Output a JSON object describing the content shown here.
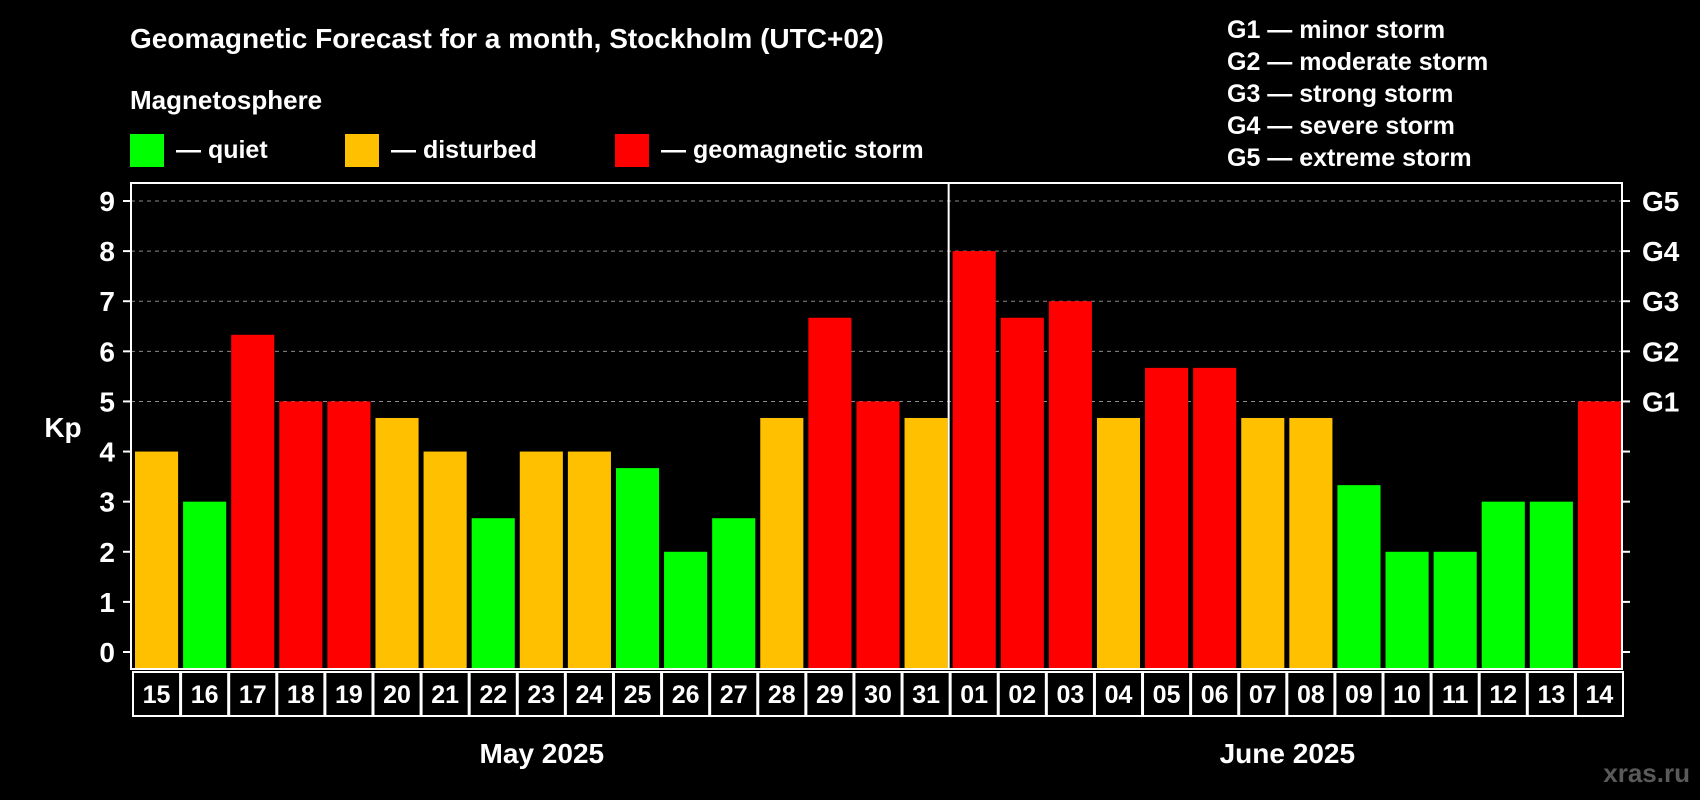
{
  "chart_data": {
    "type": "bar",
    "title": "Geomagnetic Forecast for a month, Stockholm (UTC+02)",
    "ylabel": "Kp",
    "ylim": [
      0,
      9
    ],
    "yticks": [
      "0",
      "1",
      "2",
      "3",
      "4",
      "5",
      "6",
      "7",
      "8",
      "9"
    ],
    "right_axis_labels": [
      {
        "label": "G1",
        "value": 5
      },
      {
        "label": "G2",
        "value": 6
      },
      {
        "label": "G3",
        "value": 7
      },
      {
        "label": "G4",
        "value": 8
      },
      {
        "label": "G5",
        "value": 9
      }
    ],
    "grid_values": [
      5,
      6,
      7,
      8,
      9
    ],
    "legend": {
      "heading": "Magnetosphere",
      "items": [
        {
          "label": "— quiet",
          "color": "#00ff00"
        },
        {
          "label": "— disturbed",
          "color": "#ffc000"
        },
        {
          "label": "— geomagnetic storm",
          "color": "#ff0000"
        }
      ]
    },
    "storm_scale": [
      "G1 — minor storm",
      "G2 — moderate storm",
      "G3 — strong storm",
      "G4 — severe storm",
      "G5 — extreme storm"
    ],
    "colors": {
      "quiet": "#00ff00",
      "disturbed": "#ffc000",
      "storm": "#ff0000"
    },
    "months": [
      {
        "label": "May 2025",
        "days": 17
      },
      {
        "label": "June 2025",
        "days": 14
      }
    ],
    "categories": [
      "15",
      "16",
      "17",
      "18",
      "19",
      "20",
      "21",
      "22",
      "23",
      "24",
      "25",
      "26",
      "27",
      "28",
      "29",
      "30",
      "31",
      "01",
      "02",
      "03",
      "04",
      "05",
      "06",
      "07",
      "08",
      "09",
      "10",
      "11",
      "12",
      "13",
      "14"
    ],
    "values": [
      4,
      3,
      6.33,
      5,
      5,
      4.67,
      4,
      2.67,
      4,
      4,
      3.67,
      2,
      2.67,
      4.67,
      6.67,
      5,
      4.67,
      8,
      6.67,
      7,
      4.67,
      5.67,
      5.67,
      4.67,
      4.67,
      3.33,
      2,
      2,
      3,
      3,
      5
    ],
    "levels": [
      "disturbed",
      "quiet",
      "storm",
      "storm",
      "storm",
      "disturbed",
      "disturbed",
      "quiet",
      "disturbed",
      "disturbed",
      "quiet",
      "quiet",
      "quiet",
      "disturbed",
      "storm",
      "storm",
      "disturbed",
      "storm",
      "storm",
      "storm",
      "disturbed",
      "storm",
      "storm",
      "disturbed",
      "disturbed",
      "quiet",
      "quiet",
      "quiet",
      "quiet",
      "quiet",
      "storm"
    ]
  },
  "watermark": "xras.ru"
}
